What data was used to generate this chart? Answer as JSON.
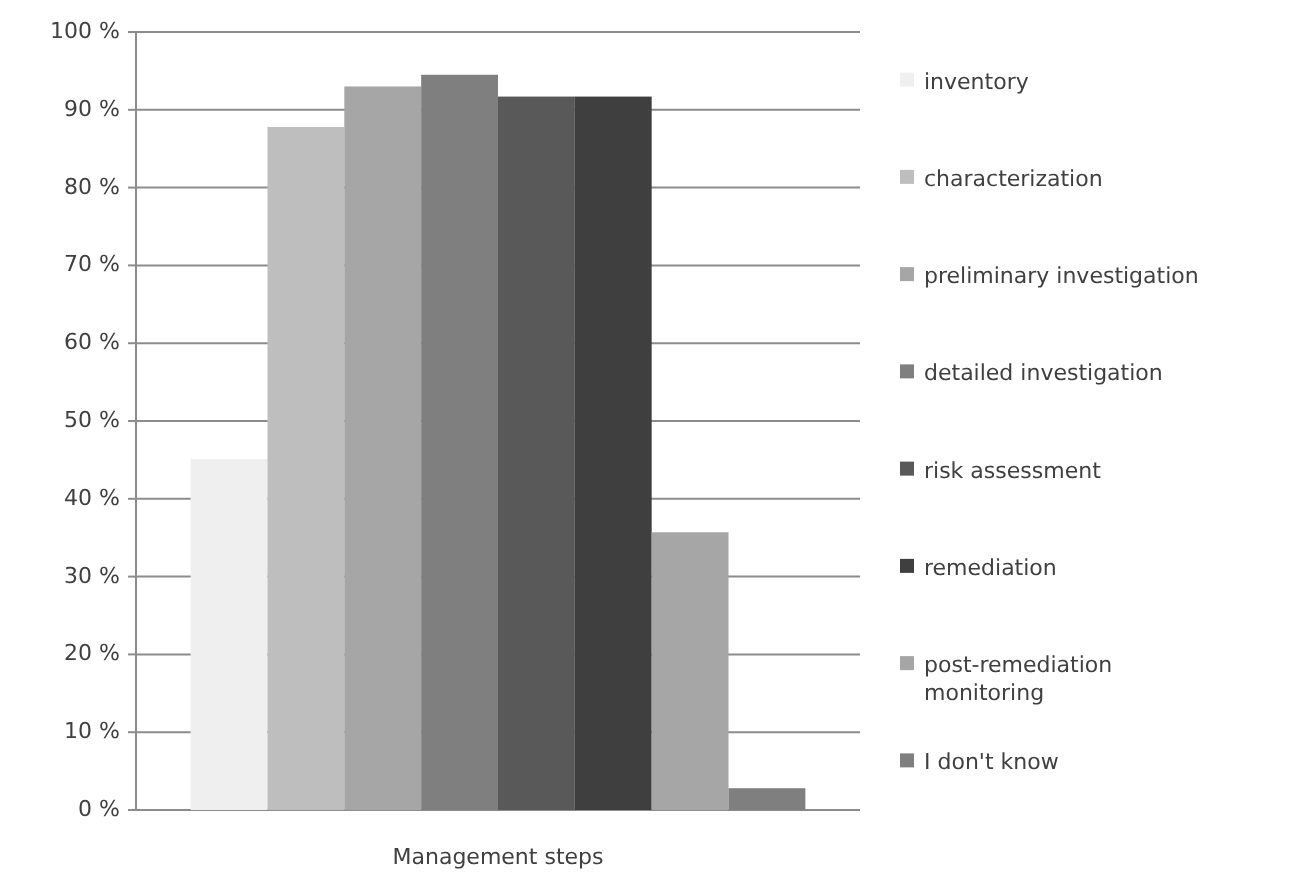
{
  "chart_data": {
    "type": "bar",
    "xlabel": "Management steps",
    "categories": [
      null
    ],
    "series": [
      {
        "name": "inventory",
        "color": "#efefef",
        "values": [
          45.1
        ]
      },
      {
        "name": "characterization",
        "color": "#bebebe",
        "values": [
          87.8
        ]
      },
      {
        "name": "preliminary investigation",
        "color": "#a6a6a6",
        "values": [
          93.0
        ]
      },
      {
        "name": "detailed investigation",
        "color": "#7f7f7f",
        "values": [
          94.5
        ]
      },
      {
        "name": "risk assessment",
        "color": "#595959",
        "values": [
          91.7
        ]
      },
      {
        "name": "remediation",
        "color": "#3f3f3f",
        "values": [
          91.7
        ]
      },
      {
        "name": "post-remediation monitoring",
        "color": "#a6a6a6",
        "values": [
          35.7
        ]
      },
      {
        "name": "I don't know",
        "color": "#7f7f7f",
        "values": [
          2.8
        ]
      }
    ],
    "ylim": [
      0,
      100
    ],
    "yticks": [
      {
        "value": 0,
        "label": "0 %"
      },
      {
        "value": 10,
        "label": "10 %"
      },
      {
        "value": 20,
        "label": "20 %"
      },
      {
        "value": 30,
        "label": "30 %"
      },
      {
        "value": 40,
        "label": "40 %"
      },
      {
        "value": 50,
        "label": "50 %"
      },
      {
        "value": 60,
        "label": "60 %"
      },
      {
        "value": 70,
        "label": "70 %"
      },
      {
        "value": 80,
        "label": "80 %"
      },
      {
        "value": 90,
        "label": "90 %"
      },
      {
        "value": 100,
        "label": "100 %"
      }
    ],
    "grid": "y",
    "legend": "right"
  }
}
